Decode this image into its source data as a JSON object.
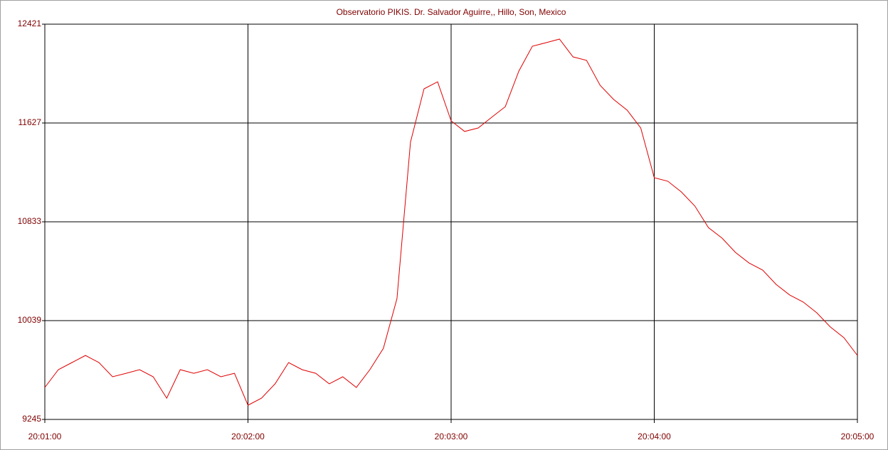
{
  "chart_data": {
    "type": "line",
    "title": "Observatorio PIKIS. Dr. Salvador Aguirre,, Hillo, Son, Mexico",
    "x": [
      "20:01:00",
      "20:01:04",
      "20:01:08",
      "20:01:12",
      "20:01:16",
      "20:01:20",
      "20:01:24",
      "20:01:28",
      "20:01:32",
      "20:01:36",
      "20:01:40",
      "20:01:44",
      "20:01:48",
      "20:01:52",
      "20:01:56",
      "20:02:00",
      "20:02:04",
      "20:02:08",
      "20:02:12",
      "20:02:16",
      "20:02:20",
      "20:02:24",
      "20:02:28",
      "20:02:32",
      "20:02:36",
      "20:02:40",
      "20:02:44",
      "20:02:48",
      "20:02:52",
      "20:02:56",
      "20:03:00",
      "20:03:04",
      "20:03:08",
      "20:03:12",
      "20:03:16",
      "20:03:20",
      "20:03:24",
      "20:03:28",
      "20:03:32",
      "20:03:36",
      "20:03:40",
      "20:03:44",
      "20:03:48",
      "20:03:52",
      "20:03:56",
      "20:04:00",
      "20:04:04",
      "20:04:08",
      "20:04:12",
      "20:04:16",
      "20:04:20",
      "20:04:24",
      "20:04:28",
      "20:04:32",
      "20:04:36",
      "20:04:40",
      "20:04:44",
      "20:04:48",
      "20:04:52",
      "20:04:56",
      "20:05:00"
    ],
    "series": [
      {
        "color": "#e00000",
        "values": [
          9502,
          9645,
          9702,
          9759,
          9702,
          9588,
          9616,
          9645,
          9588,
          9416,
          9645,
          9616,
          9645,
          9588,
          9616,
          9359,
          9416,
          9531,
          9702,
          9645,
          9616,
          9531,
          9588,
          9502,
          9645,
          9816,
          10216,
          11473,
          11901,
          11958,
          11644,
          11559,
          11587,
          11673,
          11758,
          12044,
          12244,
          12272,
          12301,
          12158,
          12130,
          11930,
          11816,
          11730,
          11587,
          11187,
          11159,
          11073,
          10959,
          10787,
          10702,
          10587,
          10502,
          10445,
          10330,
          10245,
          10188,
          10102,
          9988,
          9902,
          9759
        ]
      }
    ],
    "xlim": [
      "20:01:00",
      "20:05:00"
    ],
    "xticks": [
      "20:01:00",
      "20:02:00",
      "20:03:00",
      "20:04:00",
      "20:05:00"
    ],
    "ylim": [
      9245,
      12421
    ],
    "yticks": [
      9245,
      10039,
      10833,
      11627,
      12421
    ],
    "grid": true
  }
}
